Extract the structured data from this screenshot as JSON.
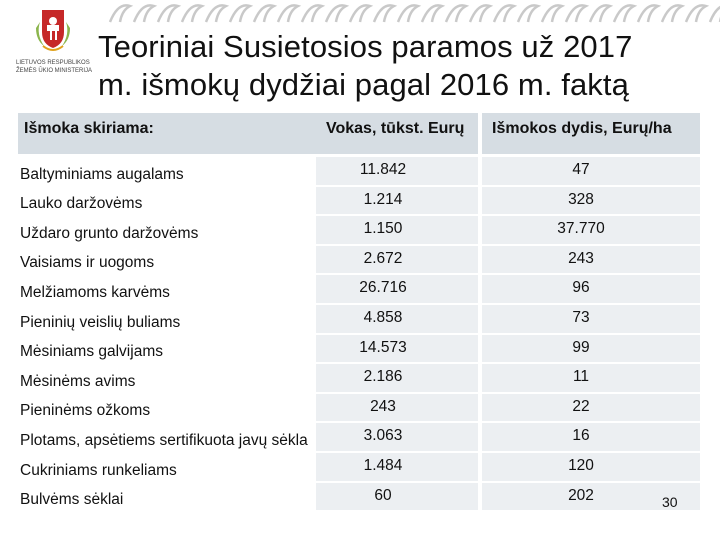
{
  "logo": {
    "line1": "LIETUVOS RESPUBLIKOS",
    "line2": "ŽEMĖS ŪKIO MINISTERIJA"
  },
  "title": "Teoriniai Susietosios paramos už 2017\nm. išmokų dydžiai pagal 2016 m. faktą",
  "table": {
    "headers": [
      "Išmoka skiriama:",
      "Vokas, tūkst. Eurų",
      "Išmokos dydis, Eurų/ha"
    ],
    "rows": [
      [
        "Baltyminiams augalams",
        "11.842",
        "47"
      ],
      [
        "Lauko daržovėms",
        "1.214",
        "328"
      ],
      [
        "Uždaro grunto daržovėms",
        "1.150",
        "37.770"
      ],
      [
        "Vaisiams ir uogoms",
        "2.672",
        "243"
      ],
      [
        "Melžiamoms karvėms",
        "26.716",
        "96"
      ],
      [
        "Pieninių veislių buliams",
        "4.858",
        "73"
      ],
      [
        "Mėsiniams galvijams",
        "14.573",
        "99"
      ],
      [
        "Mėsinėms avims",
        "2.186",
        "11"
      ],
      [
        "Pieninėms ožkoms",
        "243",
        "22"
      ],
      [
        "Plotams, apsėtiems sertifikuota javų sėkla",
        "3.063",
        "16"
      ],
      [
        "Cukriniams runkeliams",
        "1.484",
        "120"
      ],
      [
        "Bulvėms sėklai",
        "60",
        "202"
      ]
    ]
  },
  "page_number": "30",
  "colors": {
    "header_fill": "#d6dde3",
    "cell_fill": "#eceff2",
    "ornament": "#c9c9c9"
  }
}
